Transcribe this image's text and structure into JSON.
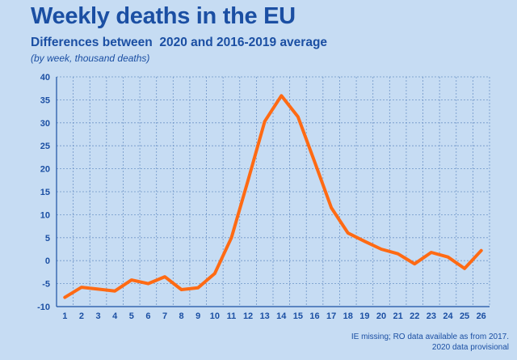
{
  "title": "Weekly deaths in the EU",
  "subtitle": "Differences between  2020 and 2016-2019 average",
  "note": "(by week, thousand deaths)",
  "source_line1": "IE missing; RO data available as from 2017.",
  "source_line2": "2020 data provisional",
  "colors": {
    "background": "#c6dcf3",
    "text": "#1b4fa3",
    "line": "#ff6a13",
    "grid": "#6f95c8"
  },
  "chart_data": {
    "type": "line",
    "title": "Weekly deaths in the EU",
    "xlabel": "",
    "ylabel": "",
    "x": [
      1,
      2,
      3,
      4,
      5,
      6,
      7,
      8,
      9,
      10,
      11,
      12,
      13,
      14,
      15,
      16,
      17,
      18,
      19,
      20,
      21,
      22,
      23,
      24,
      25,
      26
    ],
    "series": [
      {
        "values": [
          -8.0,
          -5.8,
          -6.2,
          -6.6,
          -4.2,
          -5.0,
          -3.5,
          -6.3,
          -5.9,
          -2.8,
          5.0,
          17.5,
          30.3,
          35.9,
          31.3,
          21.5,
          11.5,
          6.0,
          4.2,
          2.5,
          1.5,
          -0.7,
          1.8,
          0.8,
          -1.7,
          2.2
        ]
      }
    ],
    "ylim": [
      -10,
      40
    ],
    "yticks": [
      -10,
      -5,
      0,
      5,
      10,
      15,
      20,
      25,
      30,
      35,
      40
    ],
    "grid": true,
    "legend": "none"
  }
}
